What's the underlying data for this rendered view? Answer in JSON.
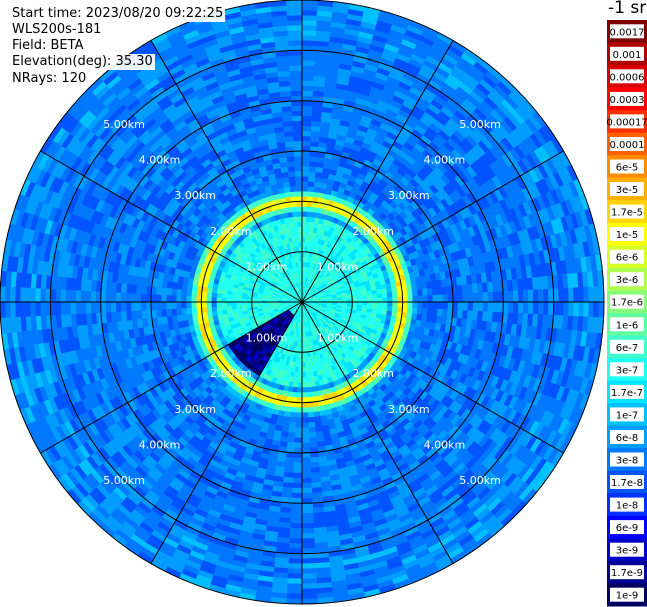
{
  "header": {
    "start_time": "Start time: 2023/08/20 09:22:25",
    "instrument": "WLS200s-181",
    "field": "Field: BETA",
    "elevation": "Elevation(deg): 35.30",
    "nrays": "NRays: 120"
  },
  "colorbar": {
    "unit": "-1 sr",
    "levels": [
      {
        "label": "0.0017",
        "color": "#800000"
      },
      {
        "label": "0.001",
        "color": "#b00000"
      },
      {
        "label": "0.0006",
        "color": "#d80000"
      },
      {
        "label": "0.0003",
        "color": "#ff0000"
      },
      {
        "label": "0.00017",
        "color": "#ff3000"
      },
      {
        "label": "0.0001",
        "color": "#ff6000"
      },
      {
        "label": "6e-5",
        "color": "#ff8c00"
      },
      {
        "label": "3e-5",
        "color": "#ffb000"
      },
      {
        "label": "1.7e-5",
        "color": "#ffd400"
      },
      {
        "label": "1e-5",
        "color": "#ffff00"
      },
      {
        "label": "6e-6",
        "color": "#d8ff28"
      },
      {
        "label": "3e-6",
        "color": "#b0ff50"
      },
      {
        "label": "1.7e-6",
        "color": "#88ff78"
      },
      {
        "label": "1e-6",
        "color": "#60ffa0"
      },
      {
        "label": "6e-7",
        "color": "#40ffc8"
      },
      {
        "label": "3e-7",
        "color": "#20fff0"
      },
      {
        "label": "1.7e-7",
        "color": "#00e4ff"
      },
      {
        "label": "1e-7",
        "color": "#00c0ff"
      },
      {
        "label": "6e-8",
        "color": "#009cff"
      },
      {
        "label": "3e-8",
        "color": "#0078ff"
      },
      {
        "label": "1.7e-8",
        "color": "#0054ff"
      },
      {
        "label": "1e-8",
        "color": "#0030ff"
      },
      {
        "label": "6e-9",
        "color": "#0000ff"
      },
      {
        "label": "3e-9",
        "color": "#0000c8"
      },
      {
        "label": "1.7e-9",
        "color": "#000090"
      },
      {
        "label": "1e-9",
        "color": "#000060"
      }
    ]
  },
  "chart_data": {
    "type": "heatmap",
    "projection": "polar PPI",
    "field": "BETA",
    "elevation_deg": 35.3,
    "nrays": 120,
    "range_unit": "km",
    "ring_labels": [
      "1.00km",
      "2.00km",
      "3.00km",
      "4.00km",
      "5.00km"
    ],
    "rings_km": [
      1,
      2,
      3,
      4,
      5
    ],
    "max_range_km": 6.0,
    "spokes_deg": [
      0,
      30,
      60,
      90,
      120,
      150,
      180,
      210,
      240,
      270,
      300,
      330
    ],
    "background_level": "3e-8",
    "near_field_level": "3e-7",
    "ring_feature": {
      "radius_km": 2.0,
      "peak_level": "6e-5"
    },
    "low_sector": {
      "azimuth_from_deg": 210,
      "azimuth_to_deg": 240,
      "level": "3e-9"
    },
    "log_scale": true
  }
}
